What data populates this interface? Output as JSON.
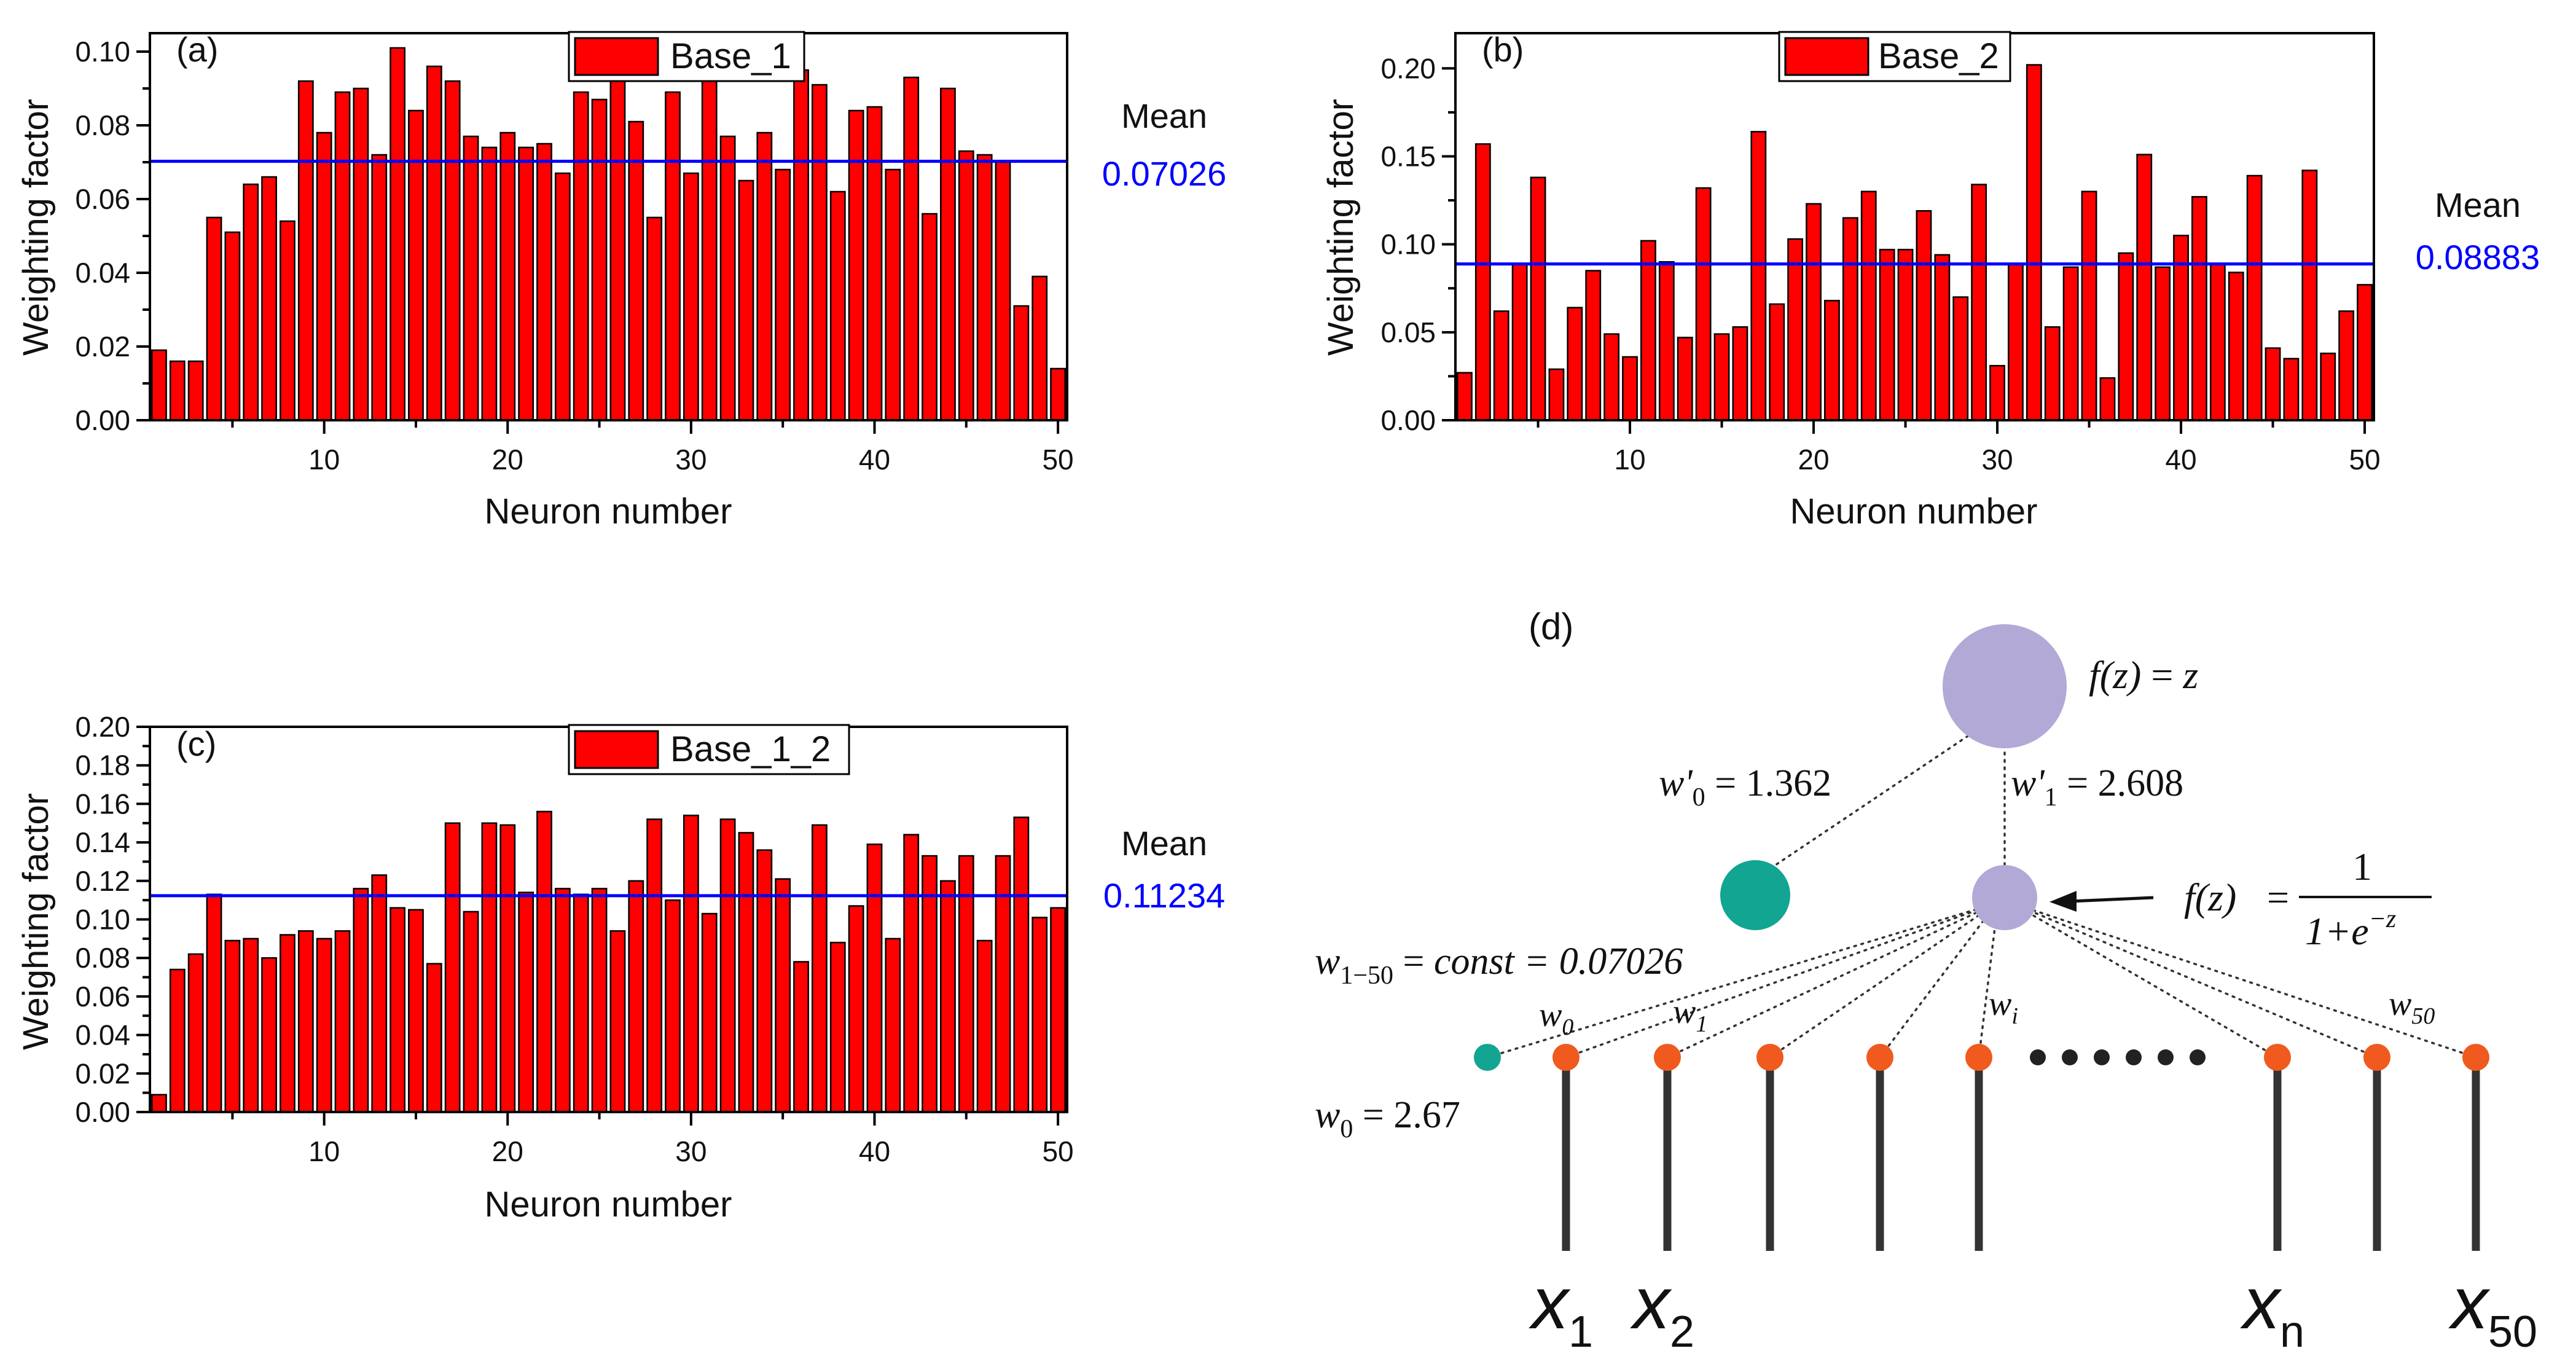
{
  "chart_data": [
    {
      "type": "bar",
      "panel_label": "(a)",
      "legend": "Base_1",
      "xlabel": "Neuron number",
      "ylabel": "Weighting factor",
      "xlim": [
        0.5,
        50.5
      ],
      "ylim": [
        0,
        0.105
      ],
      "x_ticks": [
        10,
        20,
        30,
        40,
        50
      ],
      "y_ticks": [
        "0.00",
        "0.02",
        "0.04",
        "0.06",
        "0.08",
        "0.10"
      ],
      "values": [
        0.019,
        0.016,
        0.016,
        0.055,
        0.051,
        0.064,
        0.066,
        0.054,
        0.092,
        0.078,
        0.089,
        0.09,
        0.072,
        0.101,
        0.084,
        0.096,
        0.092,
        0.077,
        0.074,
        0.078,
        0.074,
        0.075,
        0.067,
        0.089,
        0.087,
        0.094,
        0.081,
        0.055,
        0.089,
        0.067,
        0.092,
        0.077,
        0.065,
        0.078,
        0.068,
        0.095,
        0.091,
        0.062,
        0.084,
        0.085,
        0.068,
        0.093,
        0.056,
        0.09,
        0.073,
        0.072,
        0.07,
        0.031,
        0.039,
        0.014
      ],
      "mean": 0.07026,
      "mean_title": "Mean",
      "mean_label": "0.07026",
      "bar_color": "#ff0000",
      "mean_line_color": "#0000ff"
    },
    {
      "type": "bar",
      "panel_label": "(b)",
      "legend": "Base_2",
      "xlabel": "Neuron number",
      "ylabel": "Weighting factor",
      "xlim": [
        0.5,
        50.5
      ],
      "ylim": [
        0,
        0.22
      ],
      "x_ticks": [
        10,
        20,
        30,
        40,
        50
      ],
      "y_ticks": [
        "0.00",
        "0.05",
        "0.10",
        "0.15",
        "0.20"
      ],
      "values": [
        0.027,
        0.157,
        0.062,
        0.089,
        0.138,
        0.029,
        0.064,
        0.085,
        0.049,
        0.036,
        0.102,
        0.09,
        0.047,
        0.132,
        0.049,
        0.053,
        0.164,
        0.066,
        0.103,
        0.123,
        0.068,
        0.115,
        0.13,
        0.097,
        0.097,
        0.119,
        0.094,
        0.07,
        0.134,
        0.031,
        0.089,
        0.202,
        0.053,
        0.087,
        0.13,
        0.024,
        0.095,
        0.151,
        0.087,
        0.105,
        0.127,
        0.089,
        0.084,
        0.139,
        0.041,
        0.035,
        0.142,
        0.038,
        0.062,
        0.077
      ],
      "mean": 0.08883,
      "mean_title": "Mean",
      "mean_label": "0.08883",
      "bar_color": "#ff0000",
      "mean_line_color": "#0000ff"
    },
    {
      "type": "bar",
      "panel_label": "(c)",
      "legend": "Base_1_2",
      "xlabel": "Neuron number",
      "ylabel": "Weighting factor",
      "xlim": [
        0.5,
        50.5
      ],
      "ylim": [
        0,
        0.2
      ],
      "x_ticks": [
        10,
        20,
        30,
        40,
        50
      ],
      "y_ticks": [
        "0.00",
        "0.02",
        "0.04",
        "0.06",
        "0.08",
        "0.10",
        "0.12",
        "0.14",
        "0.16",
        "0.18",
        "0.20"
      ],
      "values": [
        0.009,
        0.074,
        0.082,
        0.113,
        0.089,
        0.09,
        0.08,
        0.092,
        0.094,
        0.09,
        0.094,
        0.116,
        0.123,
        0.106,
        0.105,
        0.077,
        0.15,
        0.104,
        0.15,
        0.149,
        0.114,
        0.156,
        0.116,
        0.113,
        0.116,
        0.094,
        0.12,
        0.152,
        0.11,
        0.154,
        0.103,
        0.152,
        0.145,
        0.136,
        0.121,
        0.078,
        0.149,
        0.088,
        0.107,
        0.139,
        0.09,
        0.144,
        0.133,
        0.12,
        0.133,
        0.089,
        0.133,
        0.153,
        0.101,
        0.106
      ],
      "mean": 0.11234,
      "mean_title": "Mean",
      "mean_label": "0.11234",
      "bar_color": "#ff0000",
      "mean_line_color": "#0000ff"
    }
  ],
  "diagram": {
    "panel_label": "(d)",
    "output_activation": {
      "lhs": "f(z)",
      "rhs": "z"
    },
    "hidden_activation": {
      "lhs": "f(z)",
      "numerator": "1",
      "denominator_base": "1+e",
      "denominator_exp": "−z"
    },
    "w_prime_0": {
      "symbol": "w'",
      "sub": "0",
      "value": "1.362"
    },
    "w_prime_1": {
      "symbol": "w'",
      "sub": "1",
      "value": "2.608"
    },
    "const_weights": {
      "symbol": "w",
      "sub": "1−50",
      "value": "const = 0.07026"
    },
    "bias_weight": {
      "symbol": "w",
      "sub": "0",
      "value": "2.67"
    },
    "edge_label_w0": {
      "symbol": "w",
      "sub": "0"
    },
    "edge_label_w1": {
      "symbol": "w",
      "sub": "1"
    },
    "edge_label_wi": {
      "symbol": "w",
      "sub": "i"
    },
    "edge_label_w50": {
      "symbol": "w",
      "sub": "50"
    },
    "inputs": [
      {
        "base": "x",
        "sub": "1"
      },
      {
        "base": "x",
        "sub": "2"
      },
      {
        "base": "x",
        "sub": "n"
      },
      {
        "base": "x",
        "sub": "50"
      }
    ],
    "colors": {
      "output_node": "#b3a9d6",
      "hidden_node": "#b3a9d6",
      "bias_node": "#12a591",
      "input_node": "#f05a1e",
      "line": "#333333",
      "ellipsis": "#222222"
    }
  }
}
